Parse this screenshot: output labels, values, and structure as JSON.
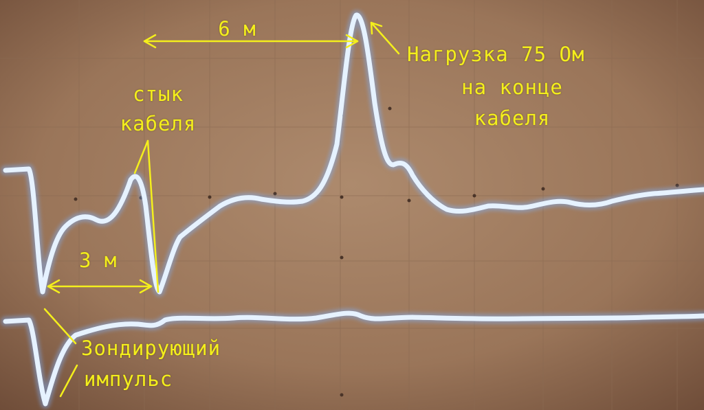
{
  "annotations": {
    "distance_6m": "6 м",
    "load_line1": "Нагрузка 75 Ом",
    "load_line2": "на конце",
    "load_line3": "кабеля",
    "joint_line1": "стык",
    "joint_line2": "кабеля",
    "distance_3m": "3 м",
    "probe_line1": "Зондирующий",
    "probe_line2": "импульс"
  },
  "colors": {
    "annotation": "#f4ef1c",
    "trace": "#e6f2ff",
    "trace_glow": "#7fb4ff",
    "screen": "#a07a5e"
  },
  "traces": [
    "reflectogram-trace",
    "baseline-trace"
  ]
}
